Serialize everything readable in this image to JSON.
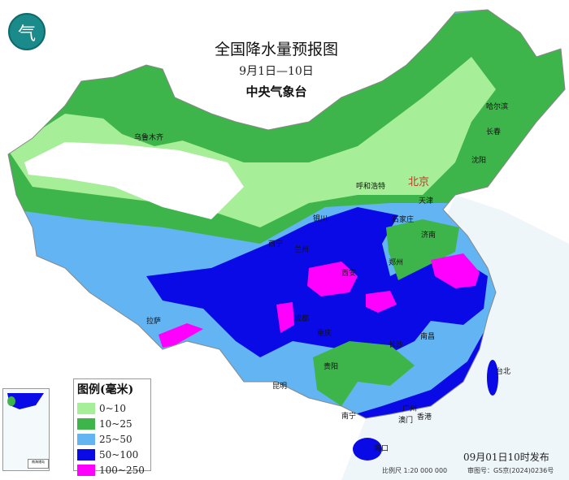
{
  "header": {
    "title": "全国降水量预报图",
    "period": "9月1日—10日",
    "organization": "中央气象台",
    "logo_glyph": "气"
  },
  "legend": {
    "title": "图例(毫米)",
    "items": [
      {
        "label": "0~10",
        "color": "#a6ee98"
      },
      {
        "label": "10~25",
        "color": "#3eb54a"
      },
      {
        "label": "25~50",
        "color": "#62b4f2"
      },
      {
        "label": "50~100",
        "color": "#0a0ae6"
      },
      {
        "label": "100~250",
        "color": "#ff00ff"
      }
    ]
  },
  "inset": {
    "caption": "南海诸岛"
  },
  "footer": {
    "issued": "09月01日10时发布",
    "scale": "比例尺 1:20 000 000",
    "approval": "审图号：GS京(2024)0236号"
  },
  "cities": [
    {
      "name": "乌鲁木齐",
      "capital": false
    },
    {
      "name": "哈尔滨",
      "capital": false
    },
    {
      "name": "长春",
      "capital": false
    },
    {
      "name": "沈阳",
      "capital": false
    },
    {
      "name": "呼和浩特",
      "capital": false
    },
    {
      "name": "北京",
      "capital": true
    },
    {
      "name": "天津",
      "capital": false
    },
    {
      "name": "银川",
      "capital": false
    },
    {
      "name": "石家庄",
      "capital": false
    },
    {
      "name": "济南",
      "capital": false
    },
    {
      "name": "西宁",
      "capital": false
    },
    {
      "name": "兰州",
      "capital": false
    },
    {
      "name": "郑州",
      "capital": false
    },
    {
      "name": "西安",
      "capital": false
    },
    {
      "name": "成都",
      "capital": false
    },
    {
      "name": "重庆",
      "capital": false
    },
    {
      "name": "拉萨",
      "capital": false
    },
    {
      "name": "长沙",
      "capital": false
    },
    {
      "name": "南昌",
      "capital": false
    },
    {
      "name": "贵阳",
      "capital": false
    },
    {
      "name": "昆明",
      "capital": false
    },
    {
      "name": "南宁",
      "capital": false
    },
    {
      "name": "广州",
      "capital": false
    },
    {
      "name": "香港",
      "capital": false
    },
    {
      "name": "澳门",
      "capital": false
    },
    {
      "name": "海口",
      "capital": false
    },
    {
      "name": "台北",
      "capital": false
    }
  ]
}
